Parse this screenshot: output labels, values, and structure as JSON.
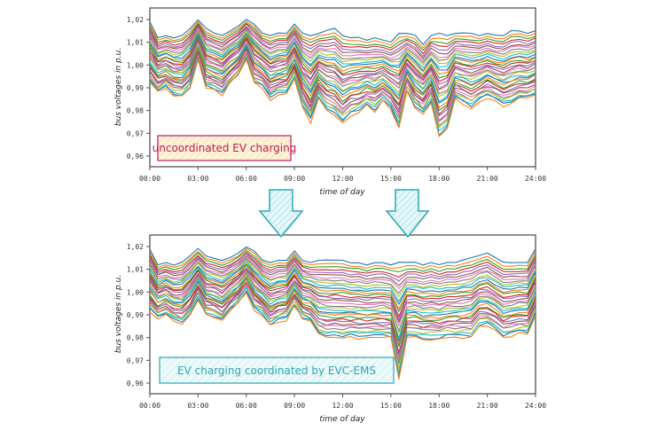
{
  "chart_data": [
    {
      "type": "line",
      "title": "",
      "annotation": "uncoordinated EV charging",
      "annotation_color": "#c2185b",
      "annotation_fill": "#fdf3d8",
      "xlabel": "time of day",
      "ylabel": "bus voltages in p.u.",
      "x_ticks": [
        "00:00",
        "03:00",
        "06:00",
        "09:00",
        "12:00",
        "15:00",
        "18:00",
        "21:00",
        "24:00"
      ],
      "y_ticks": [
        "0,96",
        "0,97",
        "0,98",
        "0,99",
        "1,00",
        "1,01",
        "1,02"
      ],
      "y_tick_values": [
        0.96,
        0.97,
        0.98,
        0.99,
        1.0,
        1.01,
        1.02
      ],
      "xlim": [
        0,
        24
      ],
      "ylim": [
        0.955,
        1.025
      ],
      "grid": false,
      "series_count": 32,
      "x_hours": [
        0,
        0.5,
        1,
        1.5,
        2,
        2.5,
        3,
        3.5,
        4,
        4.5,
        5,
        5.5,
        6,
        6.5,
        7,
        7.5,
        8,
        8.5,
        9,
        9.5,
        10,
        10.5,
        11,
        11.5,
        12,
        12.5,
        13,
        13.5,
        14,
        14.5,
        15,
        15.5,
        16,
        16.5,
        17,
        17.5,
        18,
        18.5,
        19,
        19.5,
        20,
        20.5,
        21,
        21.5,
        22,
        22.5,
        23,
        23.5,
        24
      ],
      "upper_envelope": [
        1.019,
        1.012,
        1.013,
        1.012,
        1.013,
        1.016,
        1.02,
        1.016,
        1.014,
        1.013,
        1.015,
        1.017,
        1.02,
        1.018,
        1.014,
        1.013,
        1.014,
        1.014,
        1.018,
        1.014,
        1.013,
        1.014,
        1.015,
        1.016,
        1.013,
        1.012,
        1.012,
        1.011,
        1.012,
        1.011,
        1.01,
        1.014,
        1.014,
        1.013,
        1.009,
        1.013,
        1.014,
        1.013,
        1.014,
        1.014,
        1.014,
        1.013,
        1.014,
        1.013,
        1.013,
        1.015,
        1.015,
        1.014,
        1.015
      ],
      "lower_envelope": [
        0.992,
        0.988,
        0.99,
        0.987,
        0.986,
        0.99,
        1.002,
        0.99,
        0.989,
        0.987,
        0.992,
        0.995,
        1.002,
        0.992,
        0.99,
        0.985,
        0.987,
        0.988,
        0.994,
        0.982,
        0.975,
        0.986,
        0.98,
        0.978,
        0.974,
        0.978,
        0.979,
        0.982,
        0.98,
        0.984,
        0.98,
        0.972,
        0.988,
        0.981,
        0.978,
        0.984,
        0.968,
        0.972,
        0.985,
        0.983,
        0.981,
        0.984,
        0.986,
        0.984,
        0.982,
        0.983,
        0.985,
        0.985,
        0.987
      ]
    },
    {
      "type": "line",
      "title": "",
      "annotation": "EV charging coordinated by EVC-EMS",
      "annotation_color": "#2aa7b5",
      "annotation_fill": "#e3f6f8",
      "xlabel": "time of day",
      "ylabel": "bus voltages in p.u.",
      "x_ticks": [
        "00:00",
        "03:00",
        "06:00",
        "09:00",
        "12:00",
        "15:00",
        "18:00",
        "21:00",
        "24:00"
      ],
      "y_ticks": [
        "0,96",
        "0,97",
        "0,98",
        "0,99",
        "1,00",
        "1,01",
        "1,02"
      ],
      "y_tick_values": [
        0.96,
        0.97,
        0.98,
        0.99,
        1.0,
        1.01,
        1.02
      ],
      "xlim": [
        0,
        24
      ],
      "ylim": [
        0.955,
        1.025
      ],
      "grid": false,
      "series_count": 32,
      "x_hours": [
        0,
        0.5,
        1,
        1.5,
        2,
        2.5,
        3,
        3.5,
        4,
        4.5,
        5,
        5.5,
        6,
        6.5,
        7,
        7.5,
        8,
        8.5,
        9,
        9.5,
        10,
        10.5,
        11,
        11.5,
        12,
        12.5,
        13,
        13.5,
        14,
        14.5,
        15,
        15.5,
        16,
        16.5,
        17,
        17.5,
        18,
        18.5,
        19,
        19.5,
        20,
        20.5,
        21,
        21.5,
        22,
        22.5,
        23,
        23.5,
        24
      ],
      "upper_envelope": [
        1.019,
        1.012,
        1.013,
        1.012,
        1.013,
        1.016,
        1.019,
        1.016,
        1.015,
        1.014,
        1.015,
        1.017,
        1.02,
        1.018,
        1.014,
        1.013,
        1.014,
        1.014,
        1.018,
        1.014,
        1.013,
        1.014,
        1.014,
        1.014,
        1.014,
        1.013,
        1.013,
        1.012,
        1.013,
        1.013,
        1.012,
        1.013,
        1.013,
        1.013,
        1.012,
        1.013,
        1.012,
        1.013,
        1.013,
        1.014,
        1.015,
        1.016,
        1.017,
        1.015,
        1.013,
        1.013,
        1.013,
        1.013,
        1.019
      ],
      "lower_envelope": [
        0.992,
        0.988,
        0.99,
        0.987,
        0.986,
        0.99,
        0.997,
        0.99,
        0.989,
        0.987,
        0.992,
        0.995,
        1.0,
        0.992,
        0.99,
        0.985,
        0.987,
        0.988,
        0.994,
        0.988,
        0.987,
        0.981,
        0.98,
        0.98,
        0.98,
        0.98,
        0.98,
        0.98,
        0.98,
        0.98,
        0.98,
        0.962,
        0.98,
        0.98,
        0.979,
        0.979,
        0.979,
        0.98,
        0.98,
        0.98,
        0.98,
        0.985,
        0.985,
        0.983,
        0.98,
        0.981,
        0.982,
        0.982,
        0.99
      ]
    }
  ],
  "arrows": [
    {
      "label": "arrow-at-08:30",
      "color": "#2aa7b5",
      "points_to_hour": 8.5
    },
    {
      "label": "arrow-at-16:15",
      "color": "#2aa7b5",
      "points_to_hour": 16.25
    }
  ],
  "series_colors": [
    "#1f77b4",
    "#ff7f0e",
    "#2ca02c",
    "#d62728",
    "#9467bd",
    "#8c564b",
    "#e377c2",
    "#7f7f7f",
    "#bcbd22",
    "#17becf"
  ]
}
